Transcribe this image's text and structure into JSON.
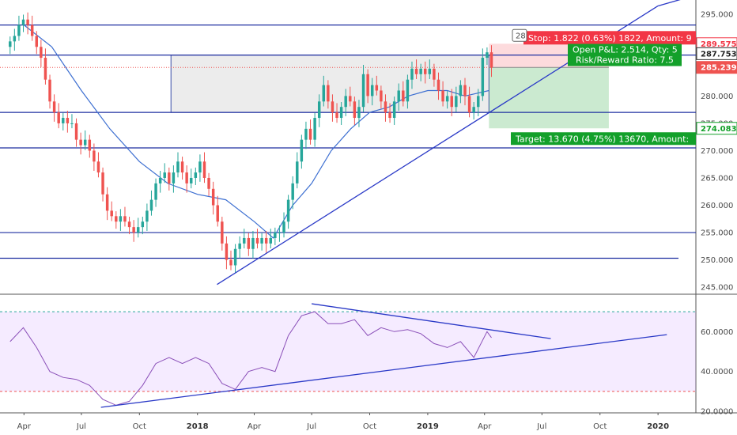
{
  "chart_data": [
    {
      "type": "candlestick",
      "title": "",
      "y_ticks": [
        295,
        290,
        285,
        280,
        275,
        270,
        265,
        260,
        255,
        250,
        245
      ],
      "y_tick_labels": [
        "295.000",
        "290.000",
        "285.000",
        "280.000",
        "275.000",
        "270.000",
        "265.000",
        "260.000",
        "255.000",
        "250.000",
        "245.000"
      ],
      "ylim": [
        244,
        297
      ],
      "x_ticks": [
        {
          "label": "Apr",
          "date": "2017-04-01"
        },
        {
          "label": "Jul",
          "date": "2017-07-01"
        },
        {
          "label": "Oct",
          "date": "2017-10-01"
        },
        {
          "label": "2018",
          "date": "2018-01-01",
          "bold": true
        },
        {
          "label": "Apr",
          "date": "2018-04-01"
        },
        {
          "label": "Jul",
          "date": "2018-07-01"
        },
        {
          "label": "Oct",
          "date": "2018-10-01"
        },
        {
          "label": "2019",
          "date": "2019-01-01",
          "bold": true
        },
        {
          "label": "Apr",
          "date": "2019-04-01"
        },
        {
          "label": "Jul",
          "date": "2019-07-01"
        },
        {
          "label": "Oct",
          "date": "2019-10-01"
        },
        {
          "label": "2020",
          "date": "2020-01-01",
          "bold": true
        }
      ],
      "weekly_closes": [
        {
          "date": "2017-03-10",
          "close": 290
        },
        {
          "date": "2017-03-17",
          "close": 291
        },
        {
          "date": "2017-03-24",
          "close": 293
        },
        {
          "date": "2017-03-31",
          "close": 294
        },
        {
          "date": "2017-04-07",
          "close": 293
        },
        {
          "date": "2017-04-14",
          "close": 291
        },
        {
          "date": "2017-04-21",
          "close": 289
        },
        {
          "date": "2017-04-28",
          "close": 287
        },
        {
          "date": "2017-05-05",
          "close": 283
        },
        {
          "date": "2017-05-12",
          "close": 279
        },
        {
          "date": "2017-05-19",
          "close": 277
        },
        {
          "date": "2017-05-26",
          "close": 275
        },
        {
          "date": "2017-06-02",
          "close": 276
        },
        {
          "date": "2017-06-09",
          "close": 275
        },
        {
          "date": "2017-06-16",
          "close": 275
        },
        {
          "date": "2017-06-23",
          "close": 272
        },
        {
          "date": "2017-06-30",
          "close": 271
        },
        {
          "date": "2017-07-07",
          "close": 272
        },
        {
          "date": "2017-07-14",
          "close": 270
        },
        {
          "date": "2017-07-21",
          "close": 268
        },
        {
          "date": "2017-07-28",
          "close": 266
        },
        {
          "date": "2017-08-04",
          "close": 262
        },
        {
          "date": "2017-08-11",
          "close": 259
        },
        {
          "date": "2017-08-18",
          "close": 258
        },
        {
          "date": "2017-08-25",
          "close": 257
        },
        {
          "date": "2017-09-01",
          "close": 258
        },
        {
          "date": "2017-09-08",
          "close": 257
        },
        {
          "date": "2017-09-15",
          "close": 256
        },
        {
          "date": "2017-09-22",
          "close": 255
        },
        {
          "date": "2017-09-29",
          "close": 256
        },
        {
          "date": "2017-10-06",
          "close": 257
        },
        {
          "date": "2017-10-13",
          "close": 259
        },
        {
          "date": "2017-10-20",
          "close": 261
        },
        {
          "date": "2017-10-27",
          "close": 264
        },
        {
          "date": "2017-11-03",
          "close": 265
        },
        {
          "date": "2017-11-10",
          "close": 266
        },
        {
          "date": "2017-11-17",
          "close": 264
        },
        {
          "date": "2017-11-24",
          "close": 266
        },
        {
          "date": "2017-12-01",
          "close": 268
        },
        {
          "date": "2017-12-08",
          "close": 266
        },
        {
          "date": "2017-12-15",
          "close": 264
        },
        {
          "date": "2017-12-22",
          "close": 265
        },
        {
          "date": "2017-12-29",
          "close": 266
        },
        {
          "date": "2018-01-05",
          "close": 268
        },
        {
          "date": "2018-01-12",
          "close": 265
        },
        {
          "date": "2018-01-19",
          "close": 263
        },
        {
          "date": "2018-01-26",
          "close": 260
        },
        {
          "date": "2018-02-02",
          "close": 257
        },
        {
          "date": "2018-02-09",
          "close": 253
        },
        {
          "date": "2018-02-16",
          "close": 250
        },
        {
          "date": "2018-02-23",
          "close": 249
        },
        {
          "date": "2018-03-02",
          "close": 252
        },
        {
          "date": "2018-03-09",
          "close": 253
        },
        {
          "date": "2018-03-16",
          "close": 254
        },
        {
          "date": "2018-03-23",
          "close": 252
        },
        {
          "date": "2018-03-30",
          "close": 254
        },
        {
          "date": "2018-04-06",
          "close": 253
        },
        {
          "date": "2018-04-13",
          "close": 254
        },
        {
          "date": "2018-04-20",
          "close": 253
        },
        {
          "date": "2018-04-27",
          "close": 254
        },
        {
          "date": "2018-05-04",
          "close": 255
        },
        {
          "date": "2018-05-11",
          "close": 255
        },
        {
          "date": "2018-05-18",
          "close": 257
        },
        {
          "date": "2018-05-25",
          "close": 261
        },
        {
          "date": "2018-06-01",
          "close": 264
        },
        {
          "date": "2018-06-08",
          "close": 268
        },
        {
          "date": "2018-06-15",
          "close": 272
        },
        {
          "date": "2018-06-22",
          "close": 274
        },
        {
          "date": "2018-06-29",
          "close": 272
        },
        {
          "date": "2018-07-06",
          "close": 276
        },
        {
          "date": "2018-07-13",
          "close": 279
        },
        {
          "date": "2018-07-20",
          "close": 282
        },
        {
          "date": "2018-07-27",
          "close": 279
        },
        {
          "date": "2018-08-03",
          "close": 277
        },
        {
          "date": "2018-08-10",
          "close": 276
        },
        {
          "date": "2018-08-17",
          "close": 278
        },
        {
          "date": "2018-08-24",
          "close": 280
        },
        {
          "date": "2018-08-31",
          "close": 279
        },
        {
          "date": "2018-09-07",
          "close": 276
        },
        {
          "date": "2018-09-14",
          "close": 278
        },
        {
          "date": "2018-09-21",
          "close": 284
        },
        {
          "date": "2018-09-28",
          "close": 280
        },
        {
          "date": "2018-10-05",
          "close": 282
        },
        {
          "date": "2018-10-12",
          "close": 281
        },
        {
          "date": "2018-10-19",
          "close": 279
        },
        {
          "date": "2018-10-26",
          "close": 277
        },
        {
          "date": "2018-11-02",
          "close": 276
        },
        {
          "date": "2018-11-09",
          "close": 279
        },
        {
          "date": "2018-11-16",
          "close": 281
        },
        {
          "date": "2018-11-23",
          "close": 279
        },
        {
          "date": "2018-11-30",
          "close": 283
        },
        {
          "date": "2018-12-07",
          "close": 285
        },
        {
          "date": "2018-12-14",
          "close": 284
        },
        {
          "date": "2018-12-21",
          "close": 285
        },
        {
          "date": "2018-12-28",
          "close": 284
        },
        {
          "date": "2019-01-04",
          "close": 285
        },
        {
          "date": "2019-01-11",
          "close": 283
        },
        {
          "date": "2019-01-18",
          "close": 281
        },
        {
          "date": "2019-01-25",
          "close": 279
        },
        {
          "date": "2019-02-01",
          "close": 280
        },
        {
          "date": "2019-02-08",
          "close": 278
        },
        {
          "date": "2019-02-15",
          "close": 280
        },
        {
          "date": "2019-02-22",
          "close": 282
        },
        {
          "date": "2019-03-01",
          "close": 280
        },
        {
          "date": "2019-03-08",
          "close": 277
        },
        {
          "date": "2019-03-15",
          "close": 278
        },
        {
          "date": "2019-03-22",
          "close": 280
        },
        {
          "date": "2019-03-29",
          "close": 287
        },
        {
          "date": "2019-04-05",
          "close": 288
        },
        {
          "date": "2019-04-12",
          "close": 285.2
        }
      ],
      "moving_average": [
        {
          "date": "2017-04-01",
          "value": 293
        },
        {
          "date": "2017-05-15",
          "value": 289
        },
        {
          "date": "2017-07-01",
          "value": 281
        },
        {
          "date": "2017-08-15",
          "value": 274
        },
        {
          "date": "2017-10-01",
          "value": 268
        },
        {
          "date": "2017-11-15",
          "value": 264
        },
        {
          "date": "2018-01-01",
          "value": 262
        },
        {
          "date": "2018-02-15",
          "value": 261
        },
        {
          "date": "2018-04-01",
          "value": 257
        },
        {
          "date": "2018-05-01",
          "value": 254
        },
        {
          "date": "2018-06-01",
          "value": 260
        },
        {
          "date": "2018-07-01",
          "value": 264
        },
        {
          "date": "2018-08-01",
          "value": 270
        },
        {
          "date": "2018-09-01",
          "value": 274
        },
        {
          "date": "2018-10-01",
          "value": 277
        },
        {
          "date": "2018-11-01",
          "value": 278
        },
        {
          "date": "2018-12-01",
          "value": 280
        },
        {
          "date": "2019-01-01",
          "value": 281
        },
        {
          "date": "2019-02-01",
          "value": 281
        },
        {
          "date": "2019-03-01",
          "value": 280
        },
        {
          "date": "2019-04-08",
          "value": 281
        }
      ],
      "horizontal_levels": [
        293,
        287.5,
        277,
        270.5,
        255,
        250.3
      ],
      "support_trendline": [
        {
          "date": "2018-02-01",
          "value": 245.5
        },
        {
          "date": "2020-01-01",
          "value": 296.5
        }
      ],
      "support_trendline_end_date": "2020-01-15",
      "range_box": {
        "date_start": "2017-11-20",
        "date_end": "2019-04-08",
        "top": 287.5,
        "bottom": 277
      },
      "position": {
        "entry_date": "2019-04-08",
        "end_date": "2019-10-15",
        "entry": 285.239,
        "stop": 289.575,
        "target": 274.083,
        "stop_label": "Stop: 1.822 (0.63%) 1822, Amount: 9",
        "pnl_label_line1": "Open P&L: 2.514, Qty: 5",
        "pnl_label_line2": "Risk/Reward Ratio: 7.5",
        "target_label": "Target: 13.670 (4.75%) 13670, Amount:"
      },
      "tag_labels": [
        {
          "value": 289.575,
          "label": "289.575",
          "type": "stop"
        },
        {
          "value": 287.753,
          "label": "287.753",
          "type": "neutral"
        },
        {
          "value": 285.239,
          "label": "285.239",
          "type": "entry"
        },
        {
          "value": 274.083,
          "label": "274.083",
          "type": "target"
        }
      ],
      "small_label": "28",
      "colors": {
        "up": "#26a69a",
        "down": "#ef5350",
        "level": "#1e2fa0",
        "ma": "#3d6fd1",
        "stop": "#f23645",
        "target": "#13a02a"
      }
    },
    {
      "type": "line",
      "title": "",
      "y_ticks": [
        60,
        40,
        20
      ],
      "y_tick_labels": [
        "60.0000",
        "40.0000",
        "20.0000"
      ],
      "ylim": [
        20,
        78
      ],
      "levels": {
        "upper": 70,
        "lower": 30
      },
      "rsi_points": [
        {
          "date": "2017-03-10",
          "value": 55
        },
        {
          "date": "2017-03-31",
          "value": 62
        },
        {
          "date": "2017-04-21",
          "value": 52
        },
        {
          "date": "2017-05-12",
          "value": 40
        },
        {
          "date": "2017-06-02",
          "value": 37
        },
        {
          "date": "2017-06-23",
          "value": 36
        },
        {
          "date": "2017-07-14",
          "value": 33
        },
        {
          "date": "2017-08-04",
          "value": 26
        },
        {
          "date": "2017-08-25",
          "value": 23
        },
        {
          "date": "2017-09-15",
          "value": 25
        },
        {
          "date": "2017-10-06",
          "value": 33
        },
        {
          "date": "2017-10-27",
          "value": 44
        },
        {
          "date": "2017-11-17",
          "value": 47
        },
        {
          "date": "2017-12-08",
          "value": 44
        },
        {
          "date": "2017-12-29",
          "value": 47
        },
        {
          "date": "2018-01-19",
          "value": 44
        },
        {
          "date": "2018-02-09",
          "value": 34
        },
        {
          "date": "2018-03-02",
          "value": 31
        },
        {
          "date": "2018-03-23",
          "value": 40
        },
        {
          "date": "2018-04-13",
          "value": 42
        },
        {
          "date": "2018-05-04",
          "value": 40
        },
        {
          "date": "2018-05-25",
          "value": 58
        },
        {
          "date": "2018-06-15",
          "value": 68
        },
        {
          "date": "2018-07-06",
          "value": 70
        },
        {
          "date": "2018-07-27",
          "value": 64
        },
        {
          "date": "2018-08-17",
          "value": 64
        },
        {
          "date": "2018-09-07",
          "value": 66
        },
        {
          "date": "2018-09-28",
          "value": 58
        },
        {
          "date": "2018-10-19",
          "value": 62
        },
        {
          "date": "2018-11-09",
          "value": 60
        },
        {
          "date": "2018-11-30",
          "value": 61
        },
        {
          "date": "2018-12-21",
          "value": 59
        },
        {
          "date": "2019-01-11",
          "value": 54
        },
        {
          "date": "2019-02-01",
          "value": 52
        },
        {
          "date": "2019-02-22",
          "value": 55
        },
        {
          "date": "2019-03-15",
          "value": 47
        },
        {
          "date": "2019-04-05",
          "value": 60
        },
        {
          "date": "2019-04-12",
          "value": 57
        }
      ],
      "resistance_trendline": [
        {
          "date": "2018-07-01",
          "value": 74
        },
        {
          "date": "2019-07-15",
          "value": 56.5
        }
      ],
      "support_trendline": [
        {
          "date": "2017-08-01",
          "value": 22
        },
        {
          "date": "2020-01-15",
          "value": 58.5
        }
      ],
      "colors": {
        "line": "#8a4fb8",
        "band": "rgba(191,128,255,0.16)",
        "upper": "#26a69a",
        "lower": "#ef5350",
        "trend": "#2a39c7"
      }
    }
  ]
}
